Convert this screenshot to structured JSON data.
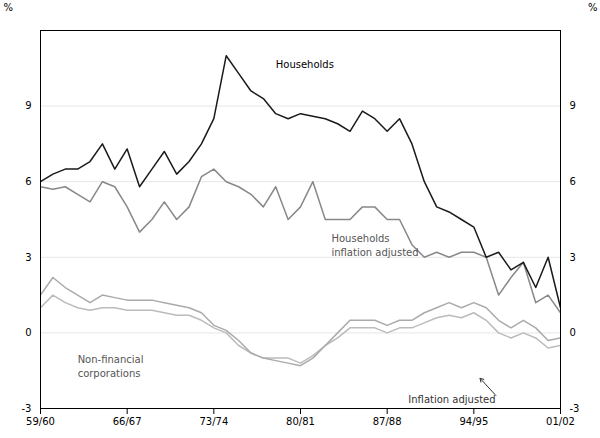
{
  "chart_data": {
    "type": "line",
    "x": [
      1959,
      1960,
      1961,
      1962,
      1963,
      1964,
      1965,
      1966,
      1967,
      1968,
      1969,
      1970,
      1971,
      1972,
      1973,
      1974,
      1975,
      1976,
      1977,
      1978,
      1979,
      1980,
      1981,
      1982,
      1983,
      1984,
      1985,
      1986,
      1987,
      1988,
      1989,
      1990,
      1991,
      1992,
      1993,
      1994,
      1995,
      1996,
      1997,
      1998,
      1999,
      2000,
      2001
    ],
    "series": [
      {
        "color": "#bbbbbb",
        "values": [
          1.0,
          1.5,
          1.2,
          1.0,
          0.9,
          1.0,
          1.0,
          0.9,
          0.9,
          0.9,
          0.8,
          0.7,
          0.7,
          0.5,
          0.2,
          0.0,
          -0.5,
          -0.8,
          -1.0,
          -1.0,
          -1.0,
          -1.2,
          -0.9,
          -0.5,
          -0.2,
          0.2,
          0.2,
          0.2,
          0.0,
          0.2,
          0.2,
          0.4,
          0.6,
          0.7,
          0.6,
          0.8,
          0.5,
          0.0,
          -0.2,
          0.0,
          -0.2,
          -0.6,
          -0.5
        ]
      },
      {
        "color": "#aaaaaa",
        "values": [
          1.5,
          2.2,
          1.8,
          1.5,
          1.2,
          1.5,
          1.4,
          1.3,
          1.3,
          1.3,
          1.2,
          1.1,
          1.0,
          0.8,
          0.3,
          0.1,
          -0.3,
          -0.8,
          -1.0,
          -1.1,
          -1.2,
          -1.3,
          -1.0,
          -0.5,
          0.0,
          0.5,
          0.5,
          0.5,
          0.3,
          0.5,
          0.5,
          0.8,
          1.0,
          1.2,
          1.0,
          1.2,
          1.0,
          0.5,
          0.2,
          0.5,
          0.2,
          -0.3,
          -0.2
        ]
      },
      {
        "color": "#888888",
        "values": [
          5.8,
          5.7,
          5.8,
          5.5,
          5.2,
          6.0,
          5.8,
          5.0,
          4.0,
          4.5,
          5.2,
          4.5,
          5.0,
          6.2,
          6.5,
          6.0,
          5.8,
          5.5,
          5.0,
          5.8,
          4.5,
          5.0,
          6.0,
          4.5,
          4.5,
          4.5,
          5.0,
          5.0,
          4.5,
          4.5,
          3.5,
          3.0,
          3.2,
          3.0,
          3.2,
          3.2,
          3.0,
          1.5,
          2.2,
          2.8,
          1.2,
          1.5,
          0.8
        ]
      },
      {
        "color": "#1a1a1a",
        "values": [
          6.0,
          6.3,
          6.5,
          6.5,
          6.8,
          7.5,
          6.5,
          7.3,
          5.8,
          6.5,
          7.2,
          6.3,
          6.8,
          7.5,
          8.5,
          11.0,
          10.3,
          9.6,
          9.3,
          8.7,
          8.5,
          8.7,
          8.6,
          8.5,
          8.3,
          8.0,
          8.8,
          8.5,
          8.0,
          8.5,
          7.5,
          6.0,
          5.0,
          4.8,
          4.5,
          4.2,
          3.0,
          3.2,
          2.5,
          2.8,
          1.8,
          3.0,
          1.0
        ]
      }
    ],
    "xlim": [
      1959,
      2001
    ],
    "xticks": [
      {
        "value": 1959,
        "label": "59/60"
      },
      {
        "value": 1966,
        "label": "66/67"
      },
      {
        "value": 1973,
        "label": "73/74"
      },
      {
        "value": 1980,
        "label": "80/81"
      },
      {
        "value": 1987,
        "label": "87/88"
      },
      {
        "value": 1994,
        "label": "94/95"
      },
      {
        "value": 2001,
        "label": "01/02"
      }
    ],
    "ylim": [
      -3,
      12
    ],
    "yticks": [
      -3,
      0,
      3,
      6,
      9
    ],
    "ylabel": "%",
    "y2lim": [
      -3,
      12
    ],
    "y2ticks": [
      -3,
      0,
      3,
      6,
      9
    ],
    "y2label": "%",
    "grid": true,
    "annotations": [
      {
        "text": "Households",
        "x": 1978,
        "y": 10.5,
        "color": "#000000"
      },
      {
        "text": "Households\ninflation adjusted",
        "x": 1982.5,
        "y": 4.0,
        "color": "#555555"
      },
      {
        "text": "Non-financial\ncorporations",
        "x": 1962,
        "y": -0.8,
        "color": "#555555"
      },
      {
        "text": "Inflation adjusted",
        "x": 1996.0,
        "y": -2.6,
        "color": "#333333",
        "xy": [
          1994.5,
          -1.8
        ]
      }
    ]
  }
}
